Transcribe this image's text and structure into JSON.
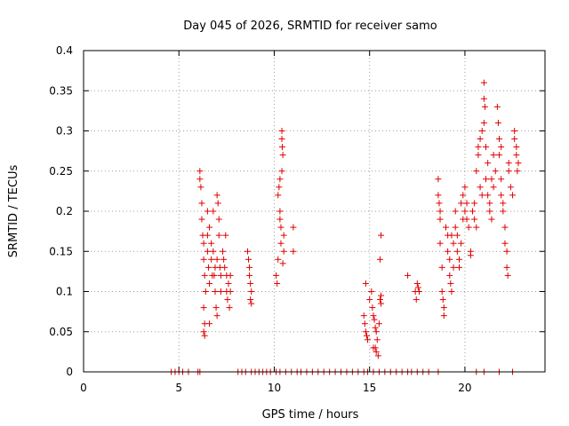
{
  "chart_data": {
    "type": "scatter",
    "title": "Day 045 of 2026, SRMTID for receiver samo",
    "xlabel": "GPS time / hours",
    "ylabel": "SRMTID / TECUs",
    "xlim": [
      0,
      24.2
    ],
    "ylim": [
      0,
      0.4
    ],
    "grid": true,
    "marker": "+",
    "marker_color": "#e00000",
    "x_ticks": [
      0,
      5,
      10,
      15,
      20
    ],
    "x_tick_labels": [
      "0",
      "5",
      "10",
      "15",
      "20"
    ],
    "y_ticks": [
      0,
      0.05,
      0.1,
      0.15,
      0.2,
      0.25,
      0.3,
      0.35,
      0.4
    ],
    "y_tick_labels": [
      "0",
      "0.05",
      "0.1",
      "0.15",
      "0.2",
      "0.25",
      "0.3",
      "0.35",
      "0.4"
    ],
    "series": [
      {
        "name": "SRMTID",
        "points": [
          [
            4.6,
            0
          ],
          [
            4.8,
            0
          ],
          [
            5.0,
            0
          ],
          [
            5.2,
            0
          ],
          [
            5.5,
            0
          ],
          [
            6.0,
            0
          ],
          [
            6.1,
            0
          ],
          [
            8.1,
            0
          ],
          [
            8.3,
            0
          ],
          [
            8.5,
            0
          ],
          [
            8.8,
            0
          ],
          [
            9.0,
            0
          ],
          [
            9.2,
            0
          ],
          [
            9.4,
            0
          ],
          [
            9.6,
            0
          ],
          [
            9.8,
            0
          ],
          [
            10.1,
            0
          ],
          [
            10.3,
            0
          ],
          [
            10.6,
            0
          ],
          [
            10.9,
            0
          ],
          [
            11.2,
            0
          ],
          [
            11.4,
            0
          ],
          [
            11.7,
            0
          ],
          [
            12.0,
            0
          ],
          [
            12.3,
            0
          ],
          [
            12.6,
            0
          ],
          [
            12.9,
            0
          ],
          [
            13.2,
            0
          ],
          [
            13.5,
            0
          ],
          [
            13.8,
            0
          ],
          [
            14.1,
            0
          ],
          [
            14.4,
            0
          ],
          [
            14.7,
            0
          ],
          [
            14.9,
            0
          ],
          [
            15.2,
            0
          ],
          [
            15.5,
            0
          ],
          [
            15.8,
            0
          ],
          [
            16.1,
            0
          ],
          [
            16.4,
            0
          ],
          [
            16.7,
            0
          ],
          [
            17.0,
            0
          ],
          [
            17.2,
            0
          ],
          [
            17.5,
            0
          ],
          [
            17.8,
            0
          ],
          [
            18.1,
            0
          ],
          [
            18.6,
            0
          ],
          [
            20.6,
            0
          ],
          [
            21.0,
            0
          ],
          [
            21.8,
            0
          ],
          [
            22.5,
            0
          ],
          [
            6.1,
            0.25
          ],
          [
            6.1,
            0.24
          ],
          [
            6.15,
            0.23
          ],
          [
            6.2,
            0.21
          ],
          [
            6.2,
            0.19
          ],
          [
            6.25,
            0.17
          ],
          [
            6.3,
            0.16
          ],
          [
            6.3,
            0.14
          ],
          [
            6.35,
            0.12
          ],
          [
            6.4,
            0.1
          ],
          [
            6.3,
            0.08
          ],
          [
            6.35,
            0.06
          ],
          [
            6.3,
            0.05
          ],
          [
            6.35,
            0.045
          ],
          [
            6.5,
            0.17
          ],
          [
            6.5,
            0.15
          ],
          [
            6.55,
            0.13
          ],
          [
            6.6,
            0.11
          ],
          [
            6.6,
            0.18
          ],
          [
            6.7,
            0.16
          ],
          [
            6.7,
            0.14
          ],
          [
            6.75,
            0.12
          ],
          [
            6.8,
            0.2
          ],
          [
            6.8,
            0.15
          ],
          [
            6.9,
            0.13
          ],
          [
            6.9,
            0.1
          ],
          [
            6.95,
            0.08
          ],
          [
            7.0,
            0.07
          ],
          [
            7.0,
            0.22
          ],
          [
            7.05,
            0.21
          ],
          [
            7.1,
            0.19
          ],
          [
            7.1,
            0.17
          ],
          [
            7.15,
            0.13
          ],
          [
            7.2,
            0.12
          ],
          [
            7.2,
            0.1
          ],
          [
            7.3,
            0.15
          ],
          [
            7.35,
            0.14
          ],
          [
            7.4,
            0.13
          ],
          [
            7.45,
            0.17
          ],
          [
            7.5,
            0.12
          ],
          [
            7.5,
            0.1
          ],
          [
            7.55,
            0.09
          ],
          [
            7.6,
            0.11
          ],
          [
            7.65,
            0.08
          ],
          [
            7.7,
            0.1
          ],
          [
            7.7,
            0.12
          ],
          [
            6.6,
            0.06
          ],
          [
            6.5,
            0.2
          ],
          [
            7.0,
            0.14
          ],
          [
            6.85,
            0.12
          ],
          [
            8.6,
            0.15
          ],
          [
            8.65,
            0.14
          ],
          [
            8.7,
            0.13
          ],
          [
            8.7,
            0.12
          ],
          [
            8.75,
            0.11
          ],
          [
            8.8,
            0.1
          ],
          [
            8.75,
            0.09
          ],
          [
            8.8,
            0.085
          ],
          [
            10.1,
            0.12
          ],
          [
            10.15,
            0.11
          ],
          [
            10.2,
            0.14
          ],
          [
            10.2,
            0.22
          ],
          [
            10.25,
            0.23
          ],
          [
            10.3,
            0.24
          ],
          [
            10.3,
            0.19
          ],
          [
            10.35,
            0.18
          ],
          [
            10.4,
            0.3
          ],
          [
            10.4,
            0.29
          ],
          [
            10.42,
            0.28
          ],
          [
            10.45,
            0.27
          ],
          [
            10.4,
            0.25
          ],
          [
            10.5,
            0.17
          ],
          [
            10.5,
            0.15
          ],
          [
            10.45,
            0.135
          ],
          [
            10.3,
            0.2
          ],
          [
            10.35,
            0.16
          ],
          [
            11.0,
            0.18
          ],
          [
            11.0,
            0.15
          ],
          [
            14.8,
            0.11
          ],
          [
            14.7,
            0.07
          ],
          [
            14.75,
            0.06
          ],
          [
            14.8,
            0.05
          ],
          [
            14.85,
            0.045
          ],
          [
            14.9,
            0.04
          ],
          [
            15.0,
            0.09
          ],
          [
            15.1,
            0.1
          ],
          [
            15.15,
            0.08
          ],
          [
            15.2,
            0.07
          ],
          [
            15.25,
            0.065
          ],
          [
            15.3,
            0.055
          ],
          [
            15.35,
            0.05
          ],
          [
            15.4,
            0.04
          ],
          [
            15.3,
            0.03
          ],
          [
            15.35,
            0.025
          ],
          [
            15.45,
            0.02
          ],
          [
            15.5,
            0.06
          ],
          [
            15.55,
            0.09
          ],
          [
            15.6,
            0.095
          ],
          [
            15.6,
            0.085
          ],
          [
            15.55,
            0.14
          ],
          [
            15.6,
            0.17
          ],
          [
            15.2,
            0.03
          ],
          [
            17.0,
            0.12
          ],
          [
            17.4,
            0.1
          ],
          [
            17.45,
            0.09
          ],
          [
            17.5,
            0.11
          ],
          [
            17.55,
            0.105
          ],
          [
            17.6,
            0.1
          ],
          [
            18.6,
            0.22
          ],
          [
            18.6,
            0.24
          ],
          [
            18.65,
            0.21
          ],
          [
            18.7,
            0.2
          ],
          [
            18.7,
            0.16
          ],
          [
            18.8,
            0.13
          ],
          [
            18.8,
            0.1
          ],
          [
            18.85,
            0.09
          ],
          [
            18.9,
            0.08
          ],
          [
            18.9,
            0.07
          ],
          [
            19.0,
            0.18
          ],
          [
            19.1,
            0.17
          ],
          [
            19.1,
            0.15
          ],
          [
            19.2,
            0.14
          ],
          [
            19.2,
            0.12
          ],
          [
            19.25,
            0.11
          ],
          [
            19.3,
            0.1
          ],
          [
            19.4,
            0.16
          ],
          [
            19.4,
            0.13
          ],
          [
            19.5,
            0.2
          ],
          [
            19.5,
            0.18
          ],
          [
            19.6,
            0.17
          ],
          [
            19.6,
            0.15
          ],
          [
            19.7,
            0.14
          ],
          [
            19.7,
            0.13
          ],
          [
            19.8,
            0.16
          ],
          [
            19.8,
            0.21
          ],
          [
            19.9,
            0.22
          ],
          [
            19.9,
            0.19
          ],
          [
            20.0,
            0.2
          ],
          [
            20.0,
            0.23
          ],
          [
            20.1,
            0.21
          ],
          [
            20.1,
            0.19
          ],
          [
            20.2,
            0.18
          ],
          [
            20.3,
            0.15
          ],
          [
            20.3,
            0.145
          ],
          [
            20.4,
            0.2
          ],
          [
            20.5,
            0.21
          ],
          [
            20.5,
            0.19
          ],
          [
            20.6,
            0.18
          ],
          [
            20.6,
            0.25
          ],
          [
            20.7,
            0.27
          ],
          [
            20.7,
            0.28
          ],
          [
            20.8,
            0.29
          ],
          [
            20.8,
            0.23
          ],
          [
            20.9,
            0.3
          ],
          [
            20.9,
            0.22
          ],
          [
            21.0,
            0.31
          ],
          [
            21.0,
            0.34
          ],
          [
            21.0,
            0.36
          ],
          [
            21.05,
            0.33
          ],
          [
            21.1,
            0.28
          ],
          [
            21.1,
            0.24
          ],
          [
            21.2,
            0.26
          ],
          [
            21.2,
            0.22
          ],
          [
            21.3,
            0.21
          ],
          [
            21.3,
            0.2
          ],
          [
            21.4,
            0.19
          ],
          [
            21.4,
            0.24
          ],
          [
            21.5,
            0.23
          ],
          [
            21.5,
            0.27
          ],
          [
            21.6,
            0.25
          ],
          [
            21.7,
            0.33
          ],
          [
            21.75,
            0.31
          ],
          [
            21.8,
            0.29
          ],
          [
            21.8,
            0.27
          ],
          [
            21.9,
            0.24
          ],
          [
            21.9,
            0.22
          ],
          [
            22.0,
            0.21
          ],
          [
            22.0,
            0.2
          ],
          [
            22.1,
            0.18
          ],
          [
            22.1,
            0.16
          ],
          [
            22.2,
            0.15
          ],
          [
            22.2,
            0.13
          ],
          [
            22.25,
            0.12
          ],
          [
            22.3,
            0.26
          ],
          [
            22.3,
            0.25
          ],
          [
            22.4,
            0.23
          ],
          [
            22.5,
            0.22
          ],
          [
            22.6,
            0.3
          ],
          [
            22.6,
            0.29
          ],
          [
            22.7,
            0.28
          ],
          [
            22.7,
            0.27
          ],
          [
            22.75,
            0.25
          ],
          [
            22.8,
            0.26
          ],
          [
            19.3,
            0.17
          ],
          [
            18.7,
            0.19
          ],
          [
            21.9,
            0.28
          ]
        ]
      }
    ]
  }
}
